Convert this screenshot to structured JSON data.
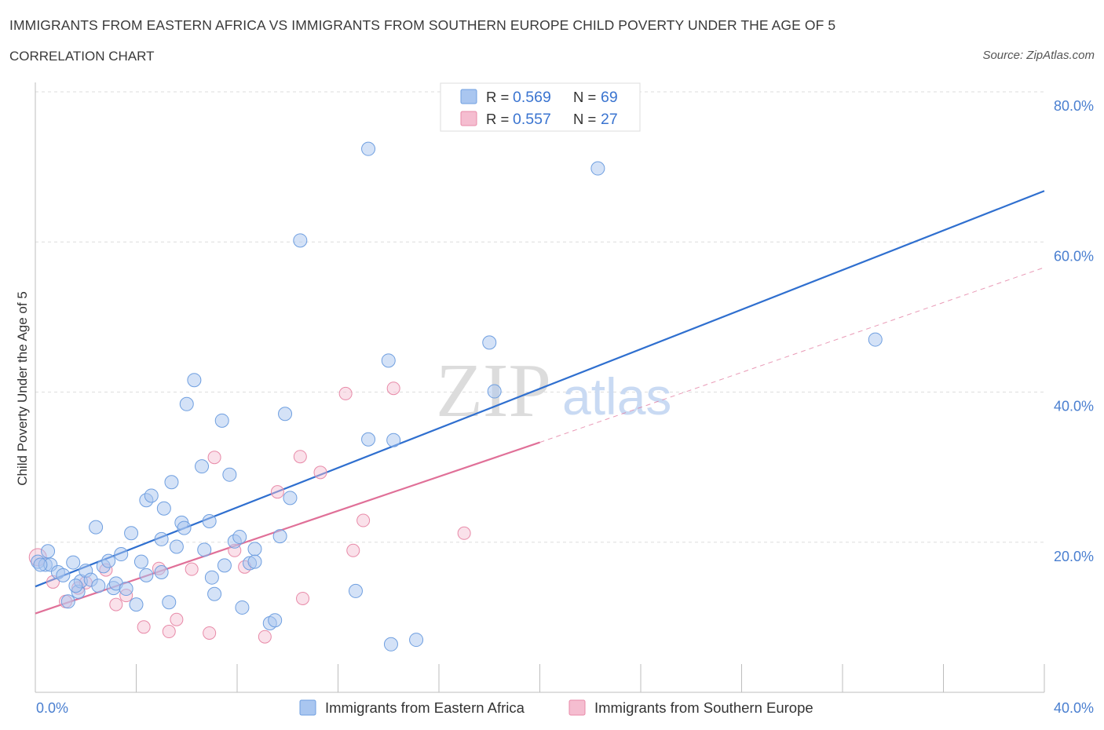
{
  "header": {
    "title": "IMMIGRANTS FROM EASTERN AFRICA VS IMMIGRANTS FROM SOUTHERN EUROPE CHILD POVERTY UNDER THE AGE OF 5",
    "subtitle": "CORRELATION CHART",
    "source": "Source: ZipAtlas.com"
  },
  "watermark": {
    "zip": "ZIP",
    "atlas": "atlas"
  },
  "legend_box": {
    "rows": [
      {
        "r_label": "R =",
        "r_value": "0.569",
        "n_label": "N =",
        "n_value": "69"
      },
      {
        "r_label": "R =",
        "r_value": "0.557",
        "n_label": "N =",
        "n_value": "27"
      }
    ]
  },
  "colors": {
    "blue_fill": "#a9c6f0",
    "blue_stroke": "#6f9fe0",
    "blue_line": "#2f6fcf",
    "pink_fill": "#f5bdd0",
    "pink_stroke": "#e88aa8",
    "pink_line": "#e07098",
    "grid": "#dedede",
    "tick_text": "#4a7fd0"
  },
  "chart_data": {
    "type": "scatter",
    "title": "IMMIGRANTS FROM EASTERN AFRICA VS IMMIGRANTS FROM SOUTHERN EUROPE CHILD POVERTY UNDER THE AGE OF 5",
    "xlabel": "",
    "ylabel": "Child Poverty Under the Age of 5",
    "xlim": [
      0,
      40
    ],
    "ylim": [
      0,
      80
    ],
    "x_tick_labels": [
      "0.0%",
      "40.0%"
    ],
    "y_tick_labels": [
      "20.0%",
      "40.0%",
      "60.0%",
      "80.0%"
    ],
    "y_ticks": [
      20,
      40,
      60,
      80
    ],
    "legend": [
      "Immigrants from Eastern Africa",
      "Immigrants from Southern Europe"
    ],
    "series": [
      {
        "name": "Immigrants from Eastern Africa",
        "R": 0.569,
        "N": 69,
        "points": [
          [
            0.1,
            17.4
          ],
          [
            0.4,
            17.0
          ],
          [
            0.5,
            18.8
          ],
          [
            0.6,
            17.0
          ],
          [
            0.9,
            16.0
          ],
          [
            1.1,
            15.6
          ],
          [
            1.3,
            12.1
          ],
          [
            1.5,
            17.3
          ],
          [
            1.7,
            13.4
          ],
          [
            1.8,
            14.8
          ],
          [
            2.0,
            16.2
          ],
          [
            2.2,
            15.0
          ],
          [
            2.4,
            22.0
          ],
          [
            2.5,
            14.2
          ],
          [
            2.7,
            16.8
          ],
          [
            2.9,
            17.5
          ],
          [
            3.1,
            13.9
          ],
          [
            3.2,
            14.5
          ],
          [
            3.4,
            18.4
          ],
          [
            3.6,
            13.8
          ],
          [
            3.8,
            21.2
          ],
          [
            4.0,
            11.7
          ],
          [
            4.2,
            17.4
          ],
          [
            4.4,
            25.6
          ],
          [
            4.4,
            15.6
          ],
          [
            4.6,
            26.2
          ],
          [
            5.0,
            16.0
          ],
          [
            5.0,
            20.4
          ],
          [
            5.1,
            24.5
          ],
          [
            5.3,
            12.0
          ],
          [
            5.4,
            28.0
          ],
          [
            5.6,
            19.4
          ],
          [
            5.8,
            22.6
          ],
          [
            5.9,
            21.9
          ],
          [
            6.0,
            38.4
          ],
          [
            6.3,
            41.6
          ],
          [
            6.6,
            30.1
          ],
          [
            6.7,
            19.0
          ],
          [
            6.9,
            22.8
          ],
          [
            7.0,
            15.3
          ],
          [
            7.1,
            13.1
          ],
          [
            7.4,
            36.2
          ],
          [
            7.5,
            16.9
          ],
          [
            7.7,
            29.0
          ],
          [
            7.9,
            20.1
          ],
          [
            8.1,
            20.7
          ],
          [
            8.2,
            11.3
          ],
          [
            8.5,
            17.2
          ],
          [
            8.7,
            19.1
          ],
          [
            8.7,
            17.4
          ],
          [
            9.3,
            9.2
          ],
          [
            9.5,
            9.6
          ],
          [
            9.7,
            20.8
          ],
          [
            9.9,
            37.1
          ],
          [
            10.1,
            25.9
          ],
          [
            10.5,
            60.2
          ],
          [
            12.7,
            13.5
          ],
          [
            13.2,
            33.7
          ],
          [
            13.2,
            72.4
          ],
          [
            14.0,
            44.2
          ],
          [
            14.1,
            6.4
          ],
          [
            14.2,
            33.6
          ],
          [
            15.1,
            7.0
          ],
          [
            18.0,
            46.6
          ],
          [
            18.2,
            40.1
          ],
          [
            22.3,
            69.8
          ],
          [
            33.3,
            47.0
          ],
          [
            0.2,
            17.0
          ],
          [
            1.6,
            14.2
          ]
        ],
        "trend": {
          "x": [
            0,
            40
          ],
          "y": [
            14.1,
            66.8
          ]
        }
      },
      {
        "name": "Immigrants from Southern Europe",
        "R": 0.557,
        "N": 27,
        "points": [
          [
            0.1,
            18.0
          ],
          [
            0.7,
            14.7
          ],
          [
            1.2,
            12.1
          ],
          [
            1.7,
            13.9
          ],
          [
            2.0,
            14.6
          ],
          [
            2.8,
            16.3
          ],
          [
            3.2,
            11.7
          ],
          [
            3.6,
            12.9
          ],
          [
            4.3,
            8.7
          ],
          [
            4.9,
            16.5
          ],
          [
            5.3,
            8.1
          ],
          [
            5.6,
            9.7
          ],
          [
            6.2,
            16.4
          ],
          [
            6.9,
            7.9
          ],
          [
            7.1,
            31.3
          ],
          [
            7.9,
            18.9
          ],
          [
            8.3,
            16.7
          ],
          [
            9.1,
            7.4
          ],
          [
            9.6,
            26.7
          ],
          [
            10.5,
            31.4
          ],
          [
            10.6,
            12.5
          ],
          [
            11.3,
            29.3
          ],
          [
            12.3,
            39.8
          ],
          [
            12.6,
            18.9
          ],
          [
            13.0,
            22.9
          ],
          [
            14.2,
            40.5
          ],
          [
            17.0,
            21.2
          ]
        ],
        "trend_solid": {
          "x": [
            0,
            20
          ],
          "y": [
            10.5,
            33.3
          ]
        },
        "trend_dashed": {
          "x": [
            20,
            40
          ],
          "y": [
            33.3,
            56.6
          ]
        }
      }
    ]
  }
}
